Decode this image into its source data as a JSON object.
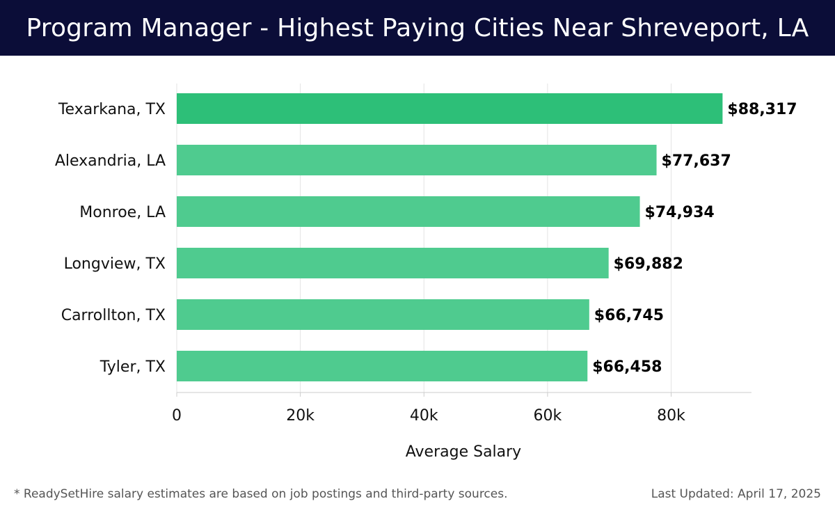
{
  "header": {
    "title": "Program Manager - Highest Paying Cities Near Shreveport, LA"
  },
  "footer": {
    "note": "* ReadySetHire salary estimates are based on job postings and third-party sources.",
    "updated": "Last Updated: April 17, 2025"
  },
  "chart_data": {
    "type": "bar",
    "orientation": "horizontal",
    "categories": [
      "Texarkana, TX",
      "Alexandria, LA",
      "Monroe, LA",
      "Longview, TX",
      "Carrollton, TX",
      "Tyler, TX"
    ],
    "values": [
      88317,
      77637,
      74934,
      69882,
      66745,
      66458
    ],
    "data_labels": [
      "$88,317",
      "$77,637",
      "$74,934",
      "$69,882",
      "$66,745",
      "$66,458"
    ],
    "xlabel": "Average Salary",
    "ylabel": "",
    "xlim": [
      0,
      93000
    ],
    "xticks": [
      0,
      20000,
      40000,
      60000,
      80000
    ],
    "xtick_labels": [
      "0",
      "20k",
      "40k",
      "60k",
      "80k"
    ],
    "grid": true,
    "colors": {
      "top_bar": "#2dbf78",
      "bar": "#4fcb8f",
      "grid": "#e3e3e3",
      "axis": "#cccccc"
    }
  }
}
